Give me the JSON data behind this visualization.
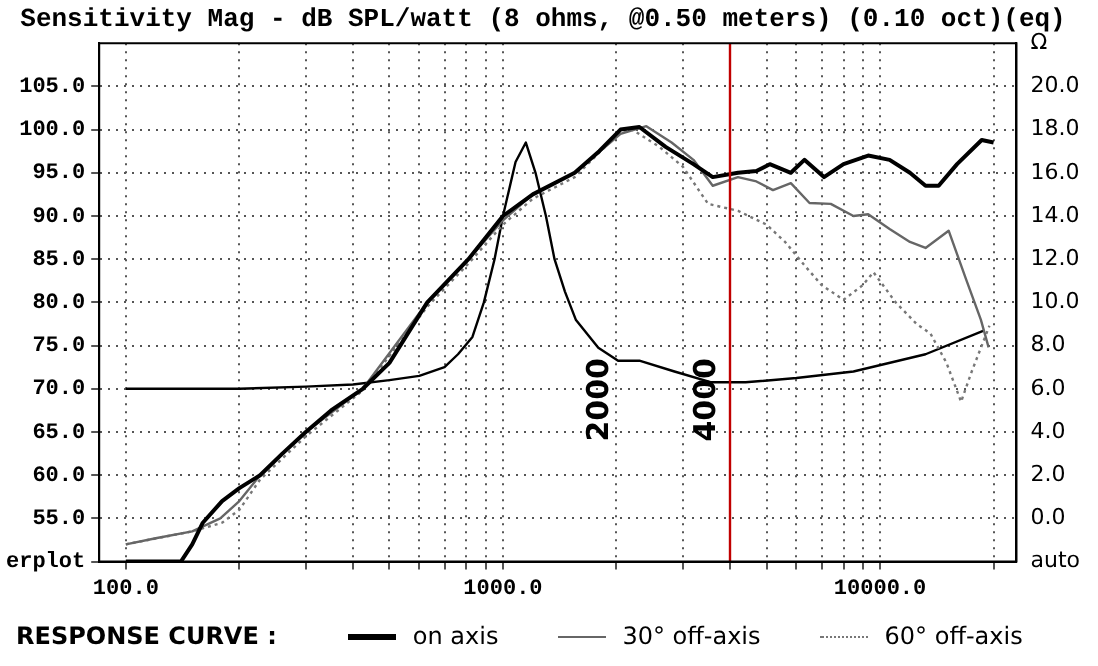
{
  "chart_data": {
    "type": "line",
    "title": "Sensitivity Mag - dB SPL/watt (8 ohms, @0.50 meters) (0.10 oct)(eq)",
    "legend_title": "RESPONSE CURVE :",
    "legend": "bottom",
    "grid": true,
    "log": "x",
    "marker": "none",
    "xlim": [
      85,
      23000
    ],
    "xticks": [
      {
        "value": 100,
        "label": "100.0"
      },
      {
        "value": 200,
        "label": null
      },
      {
        "value": 300,
        "label": null
      },
      {
        "value": 400,
        "label": null
      },
      {
        "value": 500,
        "label": null
      },
      {
        "value": 600,
        "label": null
      },
      {
        "value": 700,
        "label": null
      },
      {
        "value": 800,
        "label": null
      },
      {
        "value": 900,
        "label": null
      },
      {
        "value": 1000,
        "label": "1000.0"
      },
      {
        "value": 2000,
        "label": null
      },
      {
        "value": 3000,
        "label": null
      },
      {
        "value": 4000,
        "label": null
      },
      {
        "value": 5000,
        "label": null
      },
      {
        "value": 6000,
        "label": null
      },
      {
        "value": 7000,
        "label": null
      },
      {
        "value": 8000,
        "label": null
      },
      {
        "value": 9000,
        "label": null
      },
      {
        "value": 10000,
        "label": "10000.0"
      },
      {
        "value": 20000,
        "label": null
      }
    ],
    "ylim": [
      50,
      110
    ],
    "yticks": [
      {
        "value": 50,
        "label": "erplot"
      },
      {
        "value": 55,
        "label": "55.0"
      },
      {
        "value": 60,
        "label": "60.0"
      },
      {
        "value": 65,
        "label": "65.0"
      },
      {
        "value": 70,
        "label": "70.0"
      },
      {
        "value": 75,
        "label": "75.0"
      },
      {
        "value": 80,
        "label": "80.0"
      },
      {
        "value": 85,
        "label": "85.0"
      },
      {
        "value": 90,
        "label": "90.0"
      },
      {
        "value": 95,
        "label": "95.0"
      },
      {
        "value": 100,
        "label": "100.0"
      },
      {
        "value": 105,
        "label": "105.0"
      }
    ],
    "y2lim": [
      -2,
      22
    ],
    "y2ticks": [
      {
        "value": -2,
        "label": "auto"
      },
      {
        "value": 0,
        "label": "0.0"
      },
      {
        "value": 2,
        "label": "2.0"
      },
      {
        "value": 4,
        "label": "4.0"
      },
      {
        "value": 6,
        "label": "6.0"
      },
      {
        "value": 8,
        "label": "8.0"
      },
      {
        "value": 10,
        "label": "10.0"
      },
      {
        "value": 12,
        "label": "12.0"
      },
      {
        "value": 14,
        "label": "14.0"
      },
      {
        "value": 16,
        "label": "16.0"
      },
      {
        "value": 18,
        "label": "18.0"
      },
      {
        "value": 20,
        "label": "20.0"
      },
      {
        "value": 22,
        "label": "Ω"
      }
    ],
    "ref_lines": [
      {
        "axis": "x",
        "value": 4000,
        "label": "4000",
        "color": "#c00000"
      }
    ],
    "annotations": [
      "2000"
    ],
    "series": [
      {
        "name": "on axis",
        "color": "#000000",
        "line_style": "solid",
        "x": [
          100,
          120,
          140,
          150,
          160,
          180,
          200,
          227,
          260,
          300,
          350,
          425,
          500,
          630,
          810,
          1000,
          1200,
          1550,
          1800,
          2050,
          2300,
          2700,
          3200,
          3600,
          4200,
          4700,
          5100,
          5800,
          6300,
          7100,
          8000,
          9300,
          10600,
          12000,
          13200,
          14300,
          16000,
          18600,
          20000
        ],
        "values": [
          50,
          50,
          50,
          52,
          54.5,
          57,
          58.5,
          60,
          62.5,
          65,
          67.5,
          70,
          73,
          80,
          85,
          90,
          92.5,
          95,
          97.5,
          100,
          100.3,
          98,
          96,
          94.5,
          95,
          95.2,
          96,
          95,
          96.5,
          94.5,
          96,
          97,
          96.5,
          95,
          93.5,
          93.5,
          96,
          98.8,
          98.5
        ]
      },
      {
        "name": "30° off-axis",
        "color": "#666666",
        "line_style": "solid",
        "x": [
          100,
          120,
          150,
          178,
          200,
          227,
          300,
          425,
          630,
          810,
          1000,
          1200,
          1550,
          2050,
          2400,
          2800,
          3200,
          3600,
          4200,
          4700,
          5200,
          5800,
          6500,
          7400,
          8500,
          9300,
          10600,
          12000,
          13200,
          15200,
          16900,
          18500,
          19400
        ],
        "values": [
          52,
          52.7,
          53.5,
          55,
          57,
          60,
          65,
          70,
          80,
          85,
          89.5,
          92.5,
          95,
          99.5,
          100.4,
          98.5,
          96.5,
          93.5,
          94.5,
          94,
          93,
          93.8,
          91.5,
          91.4,
          90,
          90.2,
          88.5,
          87,
          86.3,
          88.3,
          82.7,
          78,
          74.8
        ]
      },
      {
        "name": "60° off-axis",
        "color": "#777777",
        "line_style": "dotted",
        "x": [
          100,
          150,
          180,
          200,
          227,
          300,
          425,
          630,
          810,
          1000,
          1200,
          1550,
          2050,
          2200,
          2600,
          3000,
          3500,
          4200,
          5000,
          5600,
          6300,
          7000,
          8000,
          9000,
          9600,
          11000,
          12500,
          13600,
          15000,
          16400,
          17500,
          19500
        ],
        "values": [
          52,
          53.5,
          54.5,
          56,
          59.5,
          64.5,
          69.8,
          79.5,
          84.5,
          89,
          92,
          94.5,
          99.8,
          100,
          98,
          95.7,
          91.4,
          90.6,
          89,
          87,
          84.3,
          82,
          80.3,
          82,
          83.5,
          80,
          77.5,
          76.4,
          73,
          68.5,
          72,
          77.3
        ]
      },
      {
        "color": "#000000",
        "axis": "y2",
        "line_style": "solid",
        "x": [
          100,
          200,
          300,
          400,
          500,
          600,
          700,
          760,
          830,
          890,
          950,
          1000,
          1080,
          1150,
          1220,
          1300,
          1370,
          1460,
          1560,
          1790,
          2020,
          2300,
          2850,
          3570,
          4400,
          6000,
          8500,
          13200,
          18900
        ],
        "values": [
          6.0,
          6.0,
          6.1,
          6.2,
          6.4,
          6.6,
          7.0,
          7.6,
          8.4,
          10,
          12,
          14,
          16.5,
          17.4,
          16,
          14,
          12,
          10.5,
          9.2,
          7.9,
          7.3,
          7.3,
          6.8,
          6.3,
          6.3,
          6.5,
          6.8,
          7.6,
          8.7
        ]
      }
    ]
  }
}
